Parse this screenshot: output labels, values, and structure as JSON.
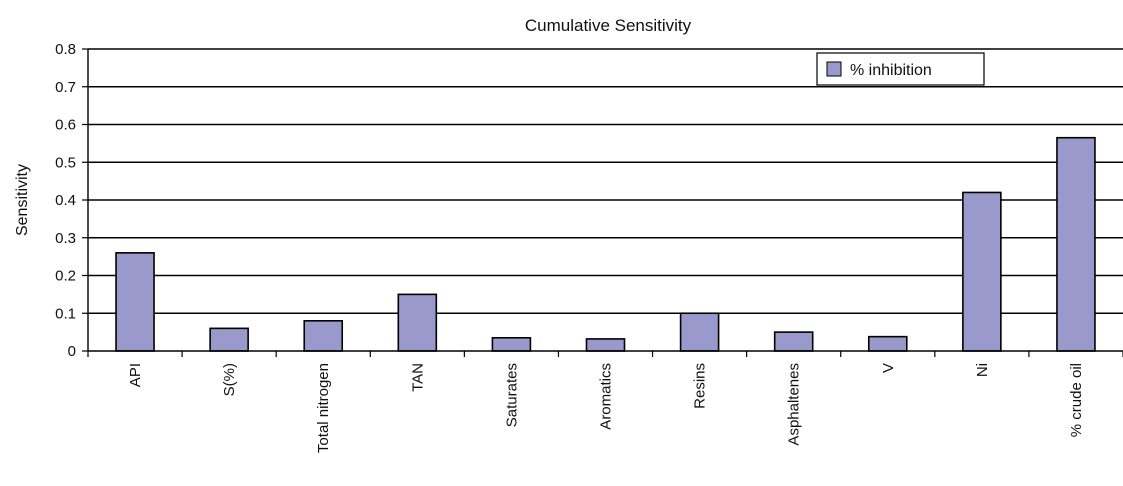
{
  "chart_data": {
    "type": "bar",
    "title": "Cumulative Sensitivity",
    "xlabel": "",
    "ylabel": "Sensitivity",
    "ylim": [
      0,
      0.8
    ],
    "yticks": [
      "0",
      "0.1",
      "0.2",
      "0.3",
      "0.4",
      "0.5",
      "0.6",
      "0.7",
      "0.8"
    ],
    "grid": true,
    "legend_position": "top-right",
    "categories": [
      "API",
      "S(%)",
      "Total nitrogen",
      "TAN",
      "Saturates",
      "Aromatics",
      "Resins",
      "Asphaltenes",
      "V",
      "Ni",
      "% crude oil"
    ],
    "series": [
      {
        "name": "% inhibition",
        "values": [
          0.26,
          0.06,
          0.08,
          0.15,
          0.035,
          0.032,
          0.1,
          0.05,
          0.038,
          0.42,
          0.565
        ]
      }
    ],
    "bar_color": "#9999cc"
  }
}
